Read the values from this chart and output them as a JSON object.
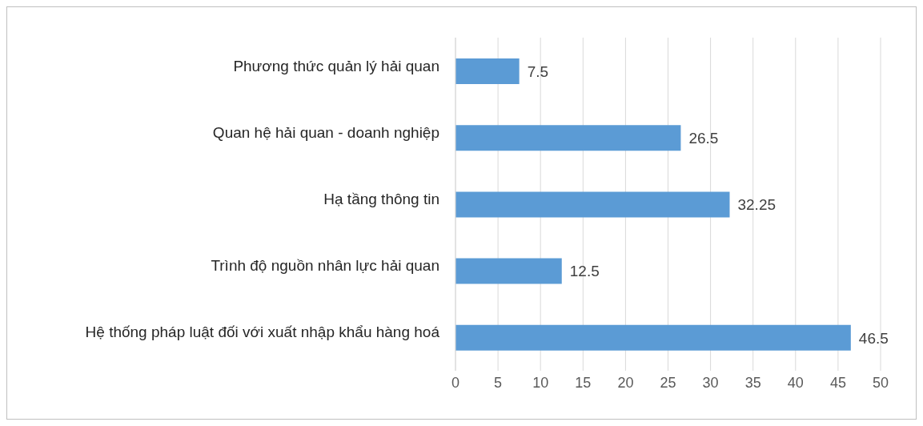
{
  "chart_data": {
    "type": "bar",
    "orientation": "horizontal",
    "categories": [
      "Phương thức quản lý hải quan",
      "Quan hệ hải quan - doanh nghiệp",
      "Hạ tầng thông tin",
      "Trình độ nguồn nhân lực hải quan",
      "Hệ thống pháp luật đối với xuất nhập khẩu hàng hoá"
    ],
    "values": [
      7.5,
      26.5,
      32.25,
      12.5,
      46.5
    ],
    "color": "#5b9bd5",
    "xlim": [
      0,
      50
    ],
    "xticks": [
      0,
      5,
      10,
      15,
      20,
      25,
      30,
      35,
      40,
      45,
      50
    ],
    "grid": "x",
    "data_labels": true
  }
}
